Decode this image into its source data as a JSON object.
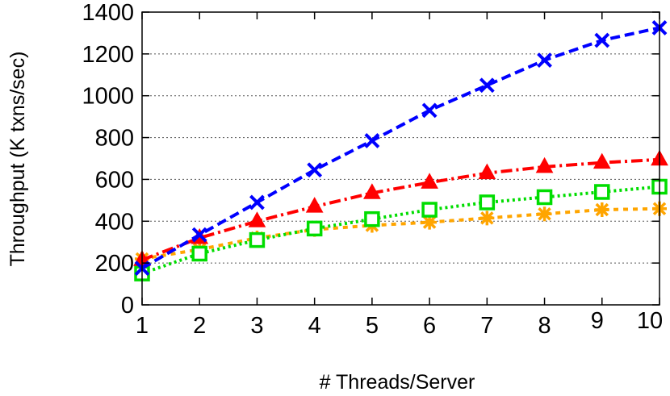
{
  "chart_data": {
    "type": "line",
    "title": "",
    "xlabel": "# Threads/Server",
    "ylabel": "Throughput (K txns/sec)",
    "x": [
      1,
      2,
      3,
      4,
      5,
      6,
      7,
      8,
      9,
      10
    ],
    "xticks": [
      "1",
      "2",
      "3",
      "4",
      "5",
      "6",
      "7",
      "8",
      "9",
      "10"
    ],
    "yticks": [
      "0",
      "200",
      "400",
      "600",
      "800",
      "1000",
      "1200",
      "1400"
    ],
    "xlim": [
      1,
      10
    ],
    "ylim": [
      0,
      1400
    ],
    "grid": "horizontal-dotted",
    "legend": "none",
    "series": [
      {
        "color": "#0000ff",
        "marker": "x",
        "dash": "dashed",
        "values": [
          175,
          335,
          490,
          645,
          785,
          930,
          1050,
          1170,
          1265,
          1325
        ]
      },
      {
        "color": "#ff0000",
        "marker": "triangle",
        "dash": "dash-dot",
        "values": [
          215,
          320,
          400,
          470,
          535,
          585,
          630,
          660,
          680,
          695
        ]
      },
      {
        "color": "#00dd00",
        "marker": "square",
        "dash": "dotted",
        "values": [
          150,
          245,
          310,
          365,
          410,
          455,
          490,
          515,
          540,
          565
        ]
      },
      {
        "color": "#ffa500",
        "marker": "star",
        "dash": "short-dashed",
        "values": [
          220,
          265,
          320,
          360,
          380,
          395,
          415,
          435,
          455,
          460
        ]
      }
    ]
  }
}
